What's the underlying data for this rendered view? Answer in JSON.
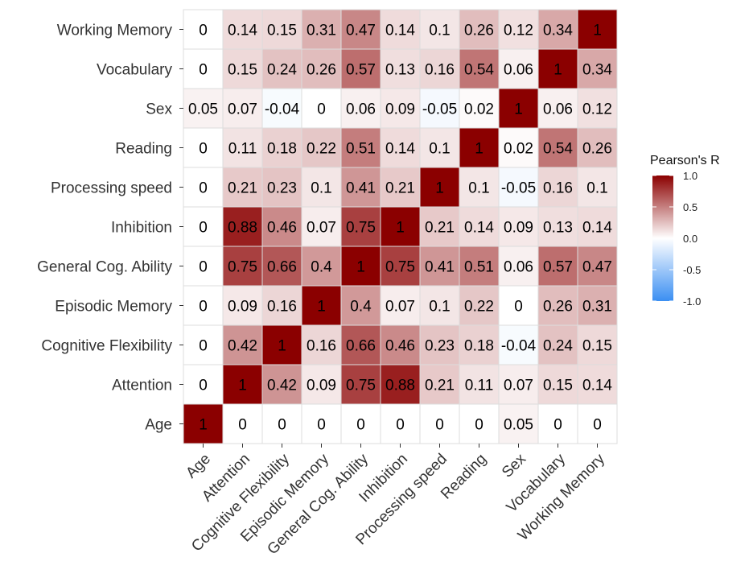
{
  "chart_data": {
    "type": "heatmap",
    "title": "",
    "xlabel": "",
    "ylabel": "",
    "variables": [
      "Age",
      "Attention",
      "Cognitive Flexibility",
      "Episodic Memory",
      "General Cog. Ability",
      "Inhibition",
      "Processing speed",
      "Reading",
      "Sex",
      "Vocabulary",
      "Working Memory"
    ],
    "x_categories": [
      "Age",
      "Attention",
      "Cognitive Flexibility",
      "Episodic Memory",
      "General Cog. Ability",
      "Inhibition",
      "Processing speed",
      "Reading",
      "Sex",
      "Vocabulary",
      "Working Memory"
    ],
    "y_categories_top_to_bottom": [
      "Working Memory",
      "Vocabulary",
      "Sex",
      "Reading",
      "Processing speed",
      "Inhibition",
      "General Cog. Ability",
      "Episodic Memory",
      "Cognitive Flexibility",
      "Attention",
      "Age"
    ],
    "matrix": [
      [
        1,
        0,
        0,
        0,
        0,
        0,
        0,
        0,
        0.05,
        0,
        0
      ],
      [
        0,
        1,
        0.42,
        0.09,
        0.75,
        0.88,
        0.21,
        0.11,
        0.07,
        0.15,
        0.14
      ],
      [
        0,
        0.42,
        1,
        0.16,
        0.66,
        0.46,
        0.23,
        0.18,
        -0.04,
        0.24,
        0.15
      ],
      [
        0,
        0.09,
        0.16,
        1,
        0.4,
        0.07,
        0.1,
        0.22,
        0,
        0.26,
        0.31
      ],
      [
        0,
        0.75,
        0.66,
        0.4,
        1,
        0.75,
        0.41,
        0.51,
        0.06,
        0.57,
        0.47
      ],
      [
        0,
        0.88,
        0.46,
        0.07,
        0.75,
        1,
        0.21,
        0.14,
        0.09,
        0.13,
        0.14
      ],
      [
        0,
        0.21,
        0.23,
        0.1,
        0.41,
        0.21,
        1,
        0.1,
        -0.05,
        0.16,
        0.1
      ],
      [
        0,
        0.11,
        0.18,
        0.22,
        0.51,
        0.14,
        0.1,
        1,
        0.02,
        0.54,
        0.26
      ],
      [
        0.05,
        0.07,
        -0.04,
        0,
        0.06,
        0.09,
        -0.05,
        0.02,
        1,
        0.06,
        0.12
      ],
      [
        0,
        0.15,
        0.24,
        0.26,
        0.57,
        0.13,
        0.16,
        0.54,
        0.06,
        1,
        0.34
      ],
      [
        0,
        0.14,
        0.15,
        0.31,
        0.47,
        0.14,
        0.1,
        0.26,
        0.12,
        0.34,
        1
      ]
    ],
    "legend": {
      "title": "Pearson's R",
      "placement": "right",
      "ticks": [
        1.0,
        0.5,
        0.0,
        -0.5,
        -1.0
      ],
      "tick_labels": [
        "1.0",
        "0.5",
        "0.0",
        "-0.5",
        "-1.0"
      ],
      "range": [
        -1,
        1
      ]
    },
    "colors": {
      "negative": "#3b8ff2",
      "zero": "#ffffff",
      "positive": "#8b0000",
      "grid": "#dcdcdc",
      "panel_border": "#cfcfcf"
    },
    "grid": true
  }
}
